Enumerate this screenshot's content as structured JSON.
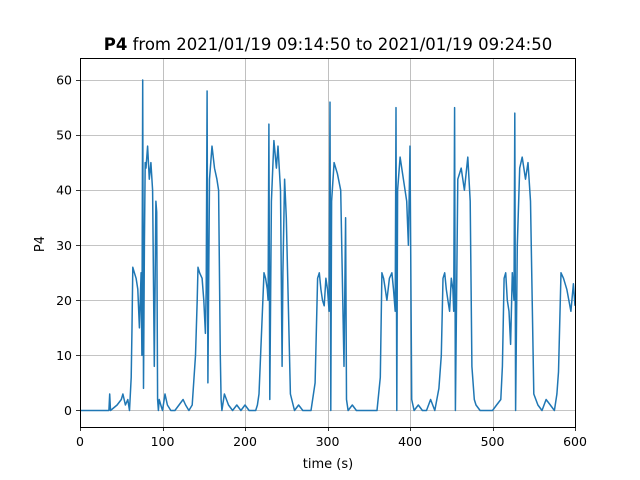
{
  "chart_data": {
    "type": "line",
    "title_bold": "P4",
    "title_rest": " from 2021/01/19 09:14:50 to 2021/01/19 09:24:50",
    "xlabel": "time (s)",
    "ylabel": "P4",
    "xlim": [
      0,
      600
    ],
    "ylim": [
      -3,
      64
    ],
    "xticks": [
      0,
      100,
      200,
      300,
      400,
      500,
      600
    ],
    "yticks": [
      0,
      10,
      20,
      30,
      40,
      50,
      60
    ],
    "grid": true,
    "colors": {
      "line": "#1f77b4",
      "grid": "#b0b0b0"
    },
    "series": [
      {
        "x": [
          0,
          35,
          36,
          37,
          45,
          50,
          52,
          55,
          58,
          60,
          62,
          63,
          64,
          66,
          68,
          70,
          72,
          74,
          75,
          76,
          77,
          78,
          79,
          80,
          82,
          84,
          86,
          88,
          90,
          92,
          93,
          94,
          95,
          96,
          98,
          100,
          103,
          106,
          110,
          115,
          120,
          125,
          128,
          132,
          136,
          140,
          142,
          143,
          145,
          148,
          150,
          152,
          153,
          154,
          155,
          157,
          160,
          163,
          166,
          168,
          170,
          171,
          172,
          175,
          180,
          185,
          190,
          195,
          200,
          205,
          210,
          213,
          215,
          217,
          220,
          223,
          225,
          227,
          228,
          229,
          230,
          232,
          235,
          238,
          240,
          243,
          245,
          246,
          248,
          250,
          255,
          260,
          265,
          270,
          280,
          285,
          288,
          290,
          292,
          294,
          296,
          298,
          300,
          302,
          303,
          304,
          305,
          308,
          312,
          316,
          320,
          322,
          323,
          325,
          330,
          335,
          340,
          350,
          360,
          364,
          366,
          368,
          370,
          372,
          375,
          378,
          380,
          382,
          383,
          384,
          385,
          388,
          392,
          396,
          398,
          400,
          402,
          405,
          410,
          415,
          420,
          425,
          430,
          435,
          438,
          440,
          442,
          444,
          446,
          448,
          450,
          452,
          453,
          454,
          455,
          458,
          462,
          466,
          470,
          473,
          475,
          478,
          480,
          485,
          490,
          495,
          500,
          505,
          510,
          512,
          514,
          516,
          518,
          520,
          522,
          524,
          526,
          527,
          528,
          530,
          533,
          536,
          540,
          543,
          546,
          550,
          555,
          560,
          565,
          570,
          575,
          578,
          580,
          583,
          586,
          590,
          595,
          598,
          600
        ],
        "y": [
          0,
          0,
          3,
          0,
          1,
          2,
          3,
          1,
          2,
          0,
          6,
          15,
          26,
          25,
          24,
          22,
          15,
          25,
          10,
          60,
          4,
          30,
          45,
          44,
          48,
          42,
          45,
          40,
          8,
          38,
          36,
          2,
          0,
          2,
          1,
          0,
          3,
          1,
          0,
          0,
          1,
          2,
          1,
          0,
          1,
          10,
          20,
          26,
          25,
          24,
          20,
          14,
          22,
          58,
          5,
          42,
          48,
          44,
          42,
          40,
          10,
          2,
          0,
          3,
          1,
          0,
          1,
          0,
          1,
          0,
          0,
          0,
          1,
          3,
          14,
          25,
          24,
          22,
          20,
          52,
          2,
          38,
          49,
          44,
          48,
          40,
          8,
          25,
          42,
          35,
          3,
          0,
          1,
          0,
          0,
          5,
          24,
          25,
          22,
          20,
          19,
          24,
          22,
          18,
          56,
          0,
          38,
          45,
          43,
          40,
          8,
          35,
          2,
          0,
          1,
          0,
          0,
          0,
          0,
          6,
          25,
          24,
          22,
          20,
          24,
          25,
          22,
          18,
          55,
          0,
          40,
          46,
          42,
          38,
          30,
          48,
          2,
          0,
          1,
          0,
          0,
          2,
          0,
          4,
          10,
          24,
          25,
          22,
          20,
          18,
          24,
          22,
          18,
          55,
          0,
          42,
          44,
          40,
          46,
          38,
          8,
          2,
          1,
          0,
          0,
          0,
          0,
          1,
          2,
          8,
          24,
          25,
          20,
          18,
          12,
          25,
          20,
          54,
          0,
          30,
          44,
          46,
          42,
          45,
          38,
          3,
          1,
          0,
          2,
          1,
          0,
          3,
          7,
          25,
          24,
          22,
          18,
          23,
          19
        ]
      }
    ]
  }
}
